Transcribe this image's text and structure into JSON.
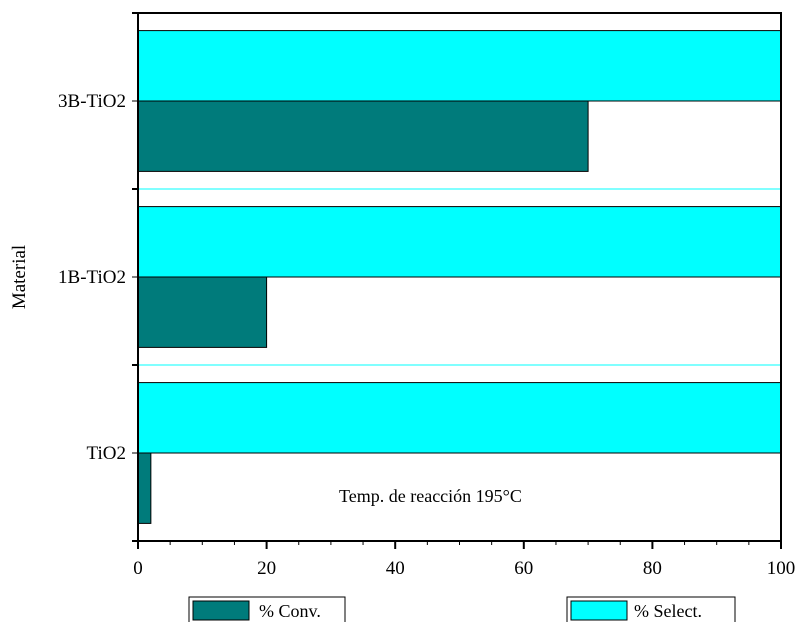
{
  "chart_data": {
    "type": "bar",
    "orientation": "horizontal",
    "categories": [
      "TiO2",
      "1B-TiO2",
      "3B-TiO2"
    ],
    "series": [
      {
        "name": "% Conv.",
        "values": [
          2,
          20,
          70
        ],
        "color": "#007b7b"
      },
      {
        "name": "% Select.",
        "values": [
          100,
          100,
          100
        ],
        "color": "#00ffff"
      }
    ],
    "xlabel": "",
    "ylabel": "Material",
    "xlim": [
      0,
      100
    ],
    "xticks": [
      "0",
      "20",
      "40",
      "60",
      "80",
      "100"
    ],
    "annotation": "Temp. de reacción 195°C",
    "grid": false,
    "legend_position": "bottom"
  }
}
